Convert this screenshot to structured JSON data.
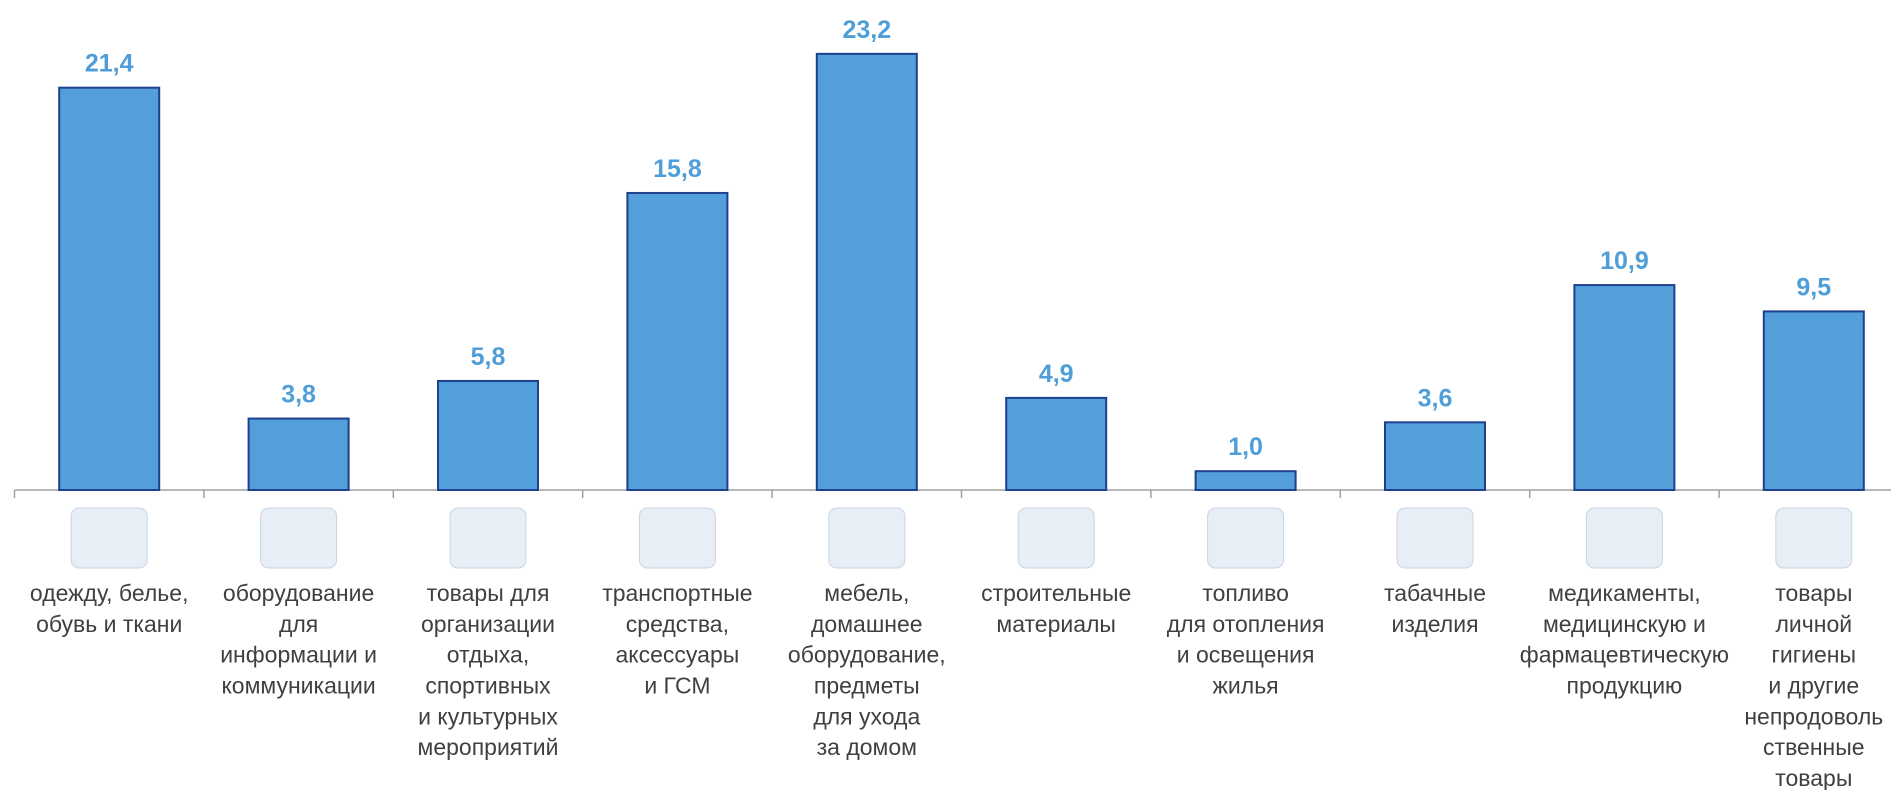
{
  "chart_data": {
    "type": "bar",
    "categories": [
      [
        "одежду, белье,",
        "обувь и ткани"
      ],
      [
        "оборудование",
        "для",
        "информации и",
        "коммуникации"
      ],
      [
        "товары для",
        "организации",
        "отдыха,",
        "спортивных",
        "и культурных",
        "мероприятий"
      ],
      [
        "транспортные",
        "средства,",
        "аксессуары",
        "и ГСМ"
      ],
      [
        "мебель,",
        "домашнее",
        "оборудование,",
        "предметы",
        "для ухода",
        "за домом"
      ],
      [
        "строительные",
        "материалы"
      ],
      [
        "топливо",
        "для отопления",
        "и освещения",
        "жилья"
      ],
      [
        "табачные",
        "изделия"
      ],
      [
        "медикаменты,",
        "медицинскую и",
        "фармацевтическую",
        "продукцию"
      ],
      [
        "товары",
        "личной",
        "гигиены",
        "и другие",
        "непродоволь",
        "ственные",
        "товары"
      ]
    ],
    "values": [
      21.4,
      3.8,
      5.8,
      15.8,
      23.2,
      4.9,
      1.0,
      3.6,
      10.9,
      9.5
    ],
    "value_labels": [
      "21,4",
      "3,8",
      "5,8",
      "15,8",
      "23,2",
      "4,9",
      "1,0",
      "3,6",
      "10,9",
      "9,5"
    ],
    "color": "#529fda"
  }
}
